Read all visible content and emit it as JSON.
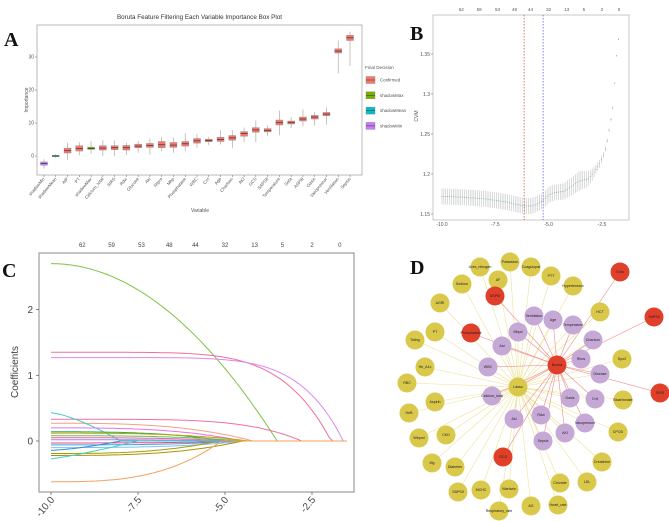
{
  "panel_letters": [
    "A",
    "B",
    "C",
    "D"
  ],
  "chart_data": [
    {
      "type": "box",
      "panel": "A",
      "title": "Boruta Feature Filtering Each Variable Importance Box Plot",
      "xlabel": "Variable",
      "ylabel": "Importance",
      "yticks": [
        0,
        10,
        20,
        30
      ],
      "ylim": [
        -6,
        38
      ],
      "legend": {
        "title": "Final Decision",
        "placement": "right",
        "entries": [
          {
            "name": "Confirmed",
            "color": "#f8766d"
          },
          {
            "name": "shadowMax",
            "color": "#7cae00"
          },
          {
            "name": "shadowMean",
            "color": "#00bfc4"
          },
          {
            "name": "shadowMin",
            "color": "#c77cff"
          }
        ]
      },
      "categories": [
        "shadowMin",
        "shadowMean",
        "AIP",
        "PT",
        "shadowMax",
        "Calcium_total",
        "SIRS",
        "Rdw",
        "Glucose",
        "Aki",
        "Ntpro",
        "Mbp",
        "Phosphatase",
        "WBC",
        "Crrt",
        "Age",
        "Charlson",
        "AKI",
        "GCS",
        "SAPSII",
        "Temperature",
        "Sofa",
        "ASPIII",
        "Oasis",
        "Vasopressor",
        "Ventilation",
        "Sepsis"
      ],
      "decision": [
        "shadowMin",
        "shadowMean",
        "Confirmed",
        "Confirmed",
        "shadowMax",
        "Confirmed",
        "Confirmed",
        "Confirmed",
        "Confirmed",
        "Confirmed",
        "Confirmed",
        "Confirmed",
        "Confirmed",
        "Confirmed",
        "Confirmed",
        "Confirmed",
        "Confirmed",
        "Confirmed",
        "Confirmed",
        "Confirmed",
        "Confirmed",
        "Confirmed",
        "Confirmed",
        "Confirmed",
        "Confirmed",
        "Confirmed",
        "Confirmed"
      ],
      "boxes": [
        [
          -3.8,
          -2.8,
          -2.3,
          -1.8,
          -1.0
        ],
        [
          -0.6,
          -0.2,
          0,
          0.2,
          0.6
        ],
        [
          -1.2,
          0.9,
          1.6,
          2.4,
          4.0
        ],
        [
          0.2,
          1.5,
          2.3,
          3.1,
          4.2
        ],
        [
          0.6,
          2.0,
          2.3,
          2.7,
          4.5
        ],
        [
          0.0,
          1.8,
          2.4,
          3.1,
          4.8
        ],
        [
          0.0,
          1.9,
          2.5,
          3.1,
          4.7
        ],
        [
          0.3,
          1.8,
          2.5,
          3.2,
          4.0
        ],
        [
          1.0,
          2.5,
          3.0,
          3.6,
          4.6
        ],
        [
          0.4,
          2.6,
          3.2,
          3.8,
          5.3
        ],
        [
          1.4,
          2.5,
          3.4,
          4.4,
          5.8
        ],
        [
          1.0,
          2.6,
          3.3,
          4.1,
          5.6
        ],
        [
          1.4,
          3.0,
          3.7,
          4.4,
          6.9
        ],
        [
          2.5,
          3.9,
          4.6,
          5.3,
          6.7
        ],
        [
          3.3,
          4.3,
          4.7,
          5.1,
          5.8
        ],
        [
          3.5,
          4.4,
          5.0,
          5.7,
          7.8
        ],
        [
          2.4,
          4.8,
          5.5,
          6.2,
          7.8
        ],
        [
          4.2,
          6.0,
          6.8,
          7.4,
          8.6
        ],
        [
          4.2,
          7.2,
          7.9,
          8.6,
          10.8
        ],
        [
          6.0,
          7.3,
          7.8,
          8.3,
          9.3
        ],
        [
          6.3,
          9.4,
          10.1,
          10.9,
          13.7
        ],
        [
          8.5,
          9.7,
          10.2,
          10.6,
          11.7
        ],
        [
          9.0,
          10.6,
          11.2,
          11.8,
          14.1
        ],
        [
          9.2,
          11.2,
          11.8,
          12.3,
          13.4
        ],
        [
          9.5,
          12.2,
          12.7,
          13.2,
          14.7
        ],
        [
          25.0,
          31.2,
          31.8,
          32.5,
          35.0
        ],
        [
          27.3,
          35.0,
          35.8,
          36.6,
          37.7
        ]
      ]
    },
    {
      "type": "line",
      "panel": "B",
      "xlabel": "",
      "ylabel": "CVM",
      "xticks": [
        -10.0,
        -7.5,
        -5.0,
        -2.5
      ],
      "xtick_labels": [
        "-10.0",
        "-7.5",
        "-5.0",
        "-2.5"
      ],
      "yticks": [
        1.15,
        1.2,
        1.25,
        1.3,
        1.35
      ],
      "ytick_labels": [
        "1.15",
        "1.2",
        "1.25",
        "1.3",
        "1.35"
      ],
      "xlim": [
        -10.4,
        -1.2
      ],
      "ylim": [
        1.148,
        1.398
      ],
      "top_axis": {
        "values": [
          -9.1,
          -8.26,
          -7.4,
          -6.6,
          -5.85,
          -5.0,
          -4.15,
          -3.35,
          -2.5,
          -1.7
        ],
        "labels": [
          "62",
          "59",
          "53",
          "48",
          "44",
          "32",
          "13",
          "5",
          "2",
          "0"
        ]
      },
      "vlines": [
        {
          "x": -6.15,
          "color": "#e03030"
        },
        {
          "x": -5.26,
          "color": "#4050f0"
        }
      ],
      "points_x": [
        -10,
        -9,
        -8,
        -7.5,
        -7,
        -6.5,
        -6.15,
        -5.8,
        -5.5,
        -5.2,
        -5.0,
        -4.7,
        -4.3,
        -4.0,
        -3.7,
        -3.5,
        -3.2,
        -3.0,
        -2.8,
        -2.6,
        -2.45,
        -2.3,
        -2.2,
        -2.1,
        -2.0,
        -1.95,
        -1.9,
        -1.85,
        -1.75,
        -1.65
      ],
      "points_y": [
        1.172,
        1.171,
        1.169,
        1.167,
        1.165,
        1.162,
        1.16,
        1.16,
        1.163,
        1.168,
        1.174,
        1.177,
        1.178,
        1.183,
        1.189,
        1.192,
        1.193,
        1.198,
        1.205,
        1.213,
        1.222,
        1.235,
        1.25,
        1.265,
        1.28,
        1.297,
        1.315,
        1.34,
        1.363,
        1.387
      ],
      "error": [
        0.01,
        0.01,
        0.01,
        0.01,
        0.01,
        0.01,
        0.01,
        0.01,
        0.01,
        0.01,
        0.01,
        0.01,
        0.01,
        0.011,
        0.012,
        0.012,
        0.01,
        0.008,
        0.006,
        0.005,
        0.004,
        0.003,
        0.002,
        0.002,
        0.002,
        0.001,
        0.001,
        0.001,
        0.001,
        0.001
      ],
      "series_color": "#6fa5a0"
    },
    {
      "type": "line",
      "panel": "C",
      "ylabel": "Coefficients",
      "xticks": [
        -10.0,
        -7.5,
        -5.0,
        -2.5
      ],
      "xtick_labels": [
        "-10.0",
        "-7.5",
        "-5.0",
        "-2.5"
      ],
      "yticks": [
        0,
        1,
        2
      ],
      "ytick_labels": [
        "0",
        "1",
        "2"
      ],
      "xlim": [
        -10.6,
        -1.6
      ],
      "ylim": [
        -0.78,
        2.85
      ],
      "top_axis": {
        "values": [
          -9.1,
          -8.26,
          -7.4,
          -6.6,
          -5.85,
          -5.0,
          -4.15,
          -3.35,
          -2.5,
          -1.7
        ],
        "labels": [
          "62",
          "59",
          "53",
          "48",
          "44",
          "32",
          "13",
          "5",
          "2",
          "0"
        ]
      },
      "series_note": "each path: start coefficient at -10, lambda where it reaches 0, curve exponent",
      "series": [
        {
          "start": 2.7,
          "zero": -3.5,
          "p": 2,
          "color": "#7cc242"
        },
        {
          "start": 1.35,
          "zero": -1.95,
          "p": 6,
          "color": "#f0709a"
        },
        {
          "start": 1.27,
          "zero": -1.6,
          "p": 7,
          "color": "#d68cf0"
        },
        {
          "start": 0.33,
          "zero": -2.8,
          "p": 5,
          "color": "#f070a0"
        },
        {
          "start": 0.27,
          "zero": -4.2,
          "p": 3,
          "color": "#f5a080"
        },
        {
          "start": 0.43,
          "zero": -8.0,
          "p": 1.4,
          "color": "#40c8d0"
        },
        {
          "start": 0.2,
          "zero": -4.5,
          "p": 3,
          "color": "#e870e8"
        },
        {
          "start": 0.14,
          "zero": -5.0,
          "p": 3,
          "color": "#20b060"
        },
        {
          "start": 0.12,
          "zero": -4.3,
          "p": 3,
          "color": "#c0a000"
        },
        {
          "start": 0.08,
          "zero": -4.5,
          "p": 3,
          "color": "#60c060"
        },
        {
          "start": 0.05,
          "zero": -4.8,
          "p": 3,
          "color": "#f06090"
        },
        {
          "start": 0.02,
          "zero": -5.0,
          "p": 3,
          "color": "#a080f0"
        },
        {
          "start": -0.03,
          "zero": -4.5,
          "p": 3,
          "color": "#e05080"
        },
        {
          "start": -0.06,
          "zero": -4.6,
          "p": 3,
          "color": "#40a0e0"
        },
        {
          "start": -0.1,
          "zero": -4.4,
          "p": 3,
          "color": "#80c0f0"
        },
        {
          "start": -0.14,
          "zero": -8.0,
          "p": 1.5,
          "color": "#3090d0"
        },
        {
          "start": -0.19,
          "zero": -5.2,
          "p": 3,
          "color": "#a0a000"
        },
        {
          "start": -0.22,
          "zero": -4.5,
          "p": 3,
          "color": "#b09000"
        },
        {
          "start": -0.27,
          "zero": -7.5,
          "p": 1.2,
          "color": "#40d0d0"
        },
        {
          "start": -0.62,
          "zero": -5.1,
          "p": 3,
          "color": "#f5a060"
        }
      ]
    },
    {
      "type": "network",
      "panel": "D",
      "colors": {
        "lasso": "#d9c84a",
        "boruta": "#e0402a",
        "both": "#c5a8d6",
        "edge_lasso": "#ece39a",
        "edge_boruta": "#f08a8a"
      },
      "hubs": [
        "Lasso",
        "Boruta"
      ],
      "lasso_only": [
        "Urea_nitrogen",
        "Potassium",
        "Coagulopat",
        "PTT",
        "Hypertension",
        "HCT",
        "Spo2",
        "Bicarbonate",
        "CPOD",
        "Creatinine",
        "LDL",
        "Chloride",
        "Heart_rate",
        "AG",
        "Respiratory_rate",
        "Warfarin",
        "MCHC",
        "SAPSII",
        "Diabetes",
        "Mg",
        "CKD",
        "Wbpmi",
        "HeB",
        "Aspirin",
        "RBC",
        "Hb_A1c",
        "Tsting",
        "PT",
        "AGRI",
        "Sodium",
        "AF"
      ],
      "boruta_only": [
        "ASPIII",
        "Phosphatase",
        "GCS",
        "Sofa",
        "SaPSII",
        "SIRS"
      ],
      "both": [
        "Ventilation",
        "Age",
        "Temperature",
        "Charlson",
        "Rbos",
        "Disease",
        "Crrt",
        "Oasis",
        "Vasopressor",
        "AKI",
        "Sepsis",
        "Rdw",
        "Aki",
        "Calcium_total",
        "WBC",
        "Ast",
        "Mbpd"
      ]
    }
  ]
}
